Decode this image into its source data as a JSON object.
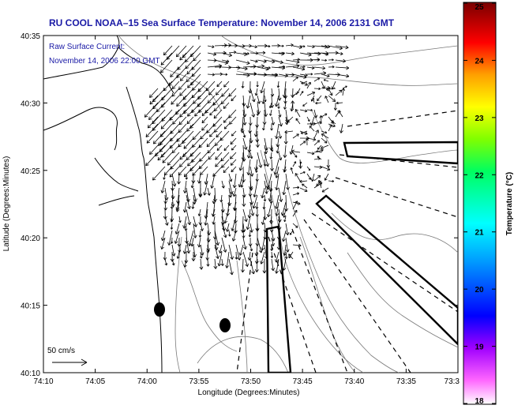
{
  "title": "RU COOL  NOAA–15  Sea Surface Temperature:  November 14, 2006 2131 GMT",
  "annotation": {
    "line1": "Raw Surface Current:",
    "line2": "November 14, 2006 22:00 GMT"
  },
  "x_axis": {
    "label": "Longitude (Degrees:Minutes)",
    "ticks": [
      "74:10",
      "74:05",
      "74:00",
      "73:55",
      "73:50",
      "73:45",
      "73:40",
      "73:35",
      "73:3"
    ]
  },
  "y_axis": {
    "label": "Latitude (Degrees:Minutes)",
    "ticks": [
      "40:35",
      "40:30",
      "40:25",
      "40:20",
      "40:15",
      "40:10"
    ]
  },
  "scale_vector": {
    "label": "50 cm/s"
  },
  "colorbar": {
    "label": "Temperature (°C)",
    "ticks": [
      "25",
      "24",
      "23",
      "22",
      "21",
      "20",
      "19",
      "18"
    ],
    "range": [
      18,
      25
    ],
    "colormap": [
      "#ffffff",
      "#ff00ff",
      "#0000ff",
      "#00ffff",
      "#00ff00",
      "#ffff00",
      "#ff0000",
      "#800000"
    ]
  },
  "map": {
    "extent": {
      "lon_range": [
        "74:10",
        "73:30"
      ],
      "lat_range": [
        "40:10",
        "40:35"
      ]
    },
    "features": [
      "coastline",
      "bathymetry-contours",
      "surface-current-vectors",
      "dashed-radial-lines",
      "sampling-transects",
      "station-markers"
    ]
  }
}
